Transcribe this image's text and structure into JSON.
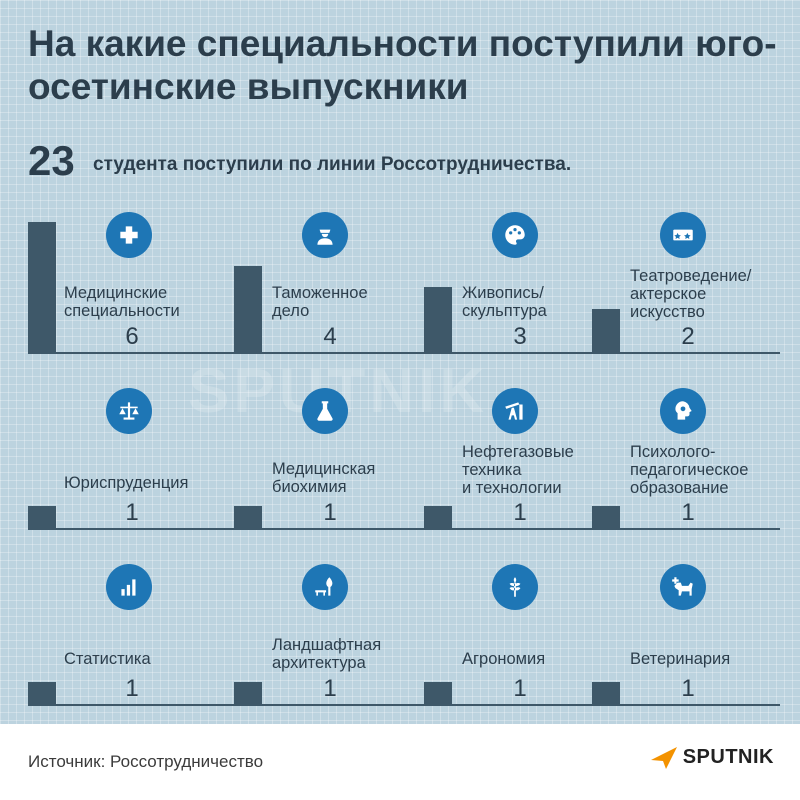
{
  "title": "На какие специальности поступили юго-осетинские выпускники",
  "total": {
    "number": "23",
    "text": "студента поступили по линии Россотрудничества."
  },
  "chart_data": {
    "type": "bar",
    "title": "На какие специальности поступили юго-осетинские выпускники",
    "ylim": [
      0,
      6
    ],
    "categories": [
      "Медицинские специальности",
      "Таможенное дело",
      "Живопись/ скульптура",
      "Театроведение/ актерское искусство",
      "Юриспруденция",
      "Медицинская биохимия",
      "Нефтегазовые техника и технологии",
      "Психолого-педагогическое образование",
      "Статистика",
      "Ландшафтная архитектура",
      "Агрономия",
      "Ветеринария"
    ],
    "values": [
      6,
      4,
      3,
      2,
      1,
      1,
      1,
      1,
      1,
      1,
      1,
      1
    ],
    "label_lines": [
      [
        "Медицинские",
        "специальности"
      ],
      [
        "Таможенное",
        "дело"
      ],
      [
        "Живопись/",
        "скульптура"
      ],
      [
        "Театроведение/",
        "актерское",
        "искусство"
      ],
      [
        "Юриспруденция"
      ],
      [
        "Медицинская",
        "биохимия"
      ],
      [
        "Нефтегазовые",
        "техника",
        "и технологии"
      ],
      [
        "Психолого-",
        "педагогическое",
        "образование"
      ],
      [
        "Статистика"
      ],
      [
        "Ландшафтная",
        "архитектура"
      ],
      [
        "Агрономия"
      ],
      [
        "Ветеринария"
      ]
    ],
    "icons": [
      "medical-cross-icon",
      "customs-officer-icon",
      "palette-icon",
      "tickets-icon",
      "scales-icon",
      "flask-icon",
      "oil-pump-icon",
      "head-gear-icon",
      "bar-chart-icon",
      "tree-bench-icon",
      "wheat-icon",
      "dog-icon"
    ]
  },
  "source": "Источник: Россотрудничество",
  "brand": "SPUTNIK",
  "colors": {
    "bar": "#3e5869",
    "icon_bg": "#1e76b5",
    "accent": "#f39200",
    "background": "#bcd3df"
  }
}
